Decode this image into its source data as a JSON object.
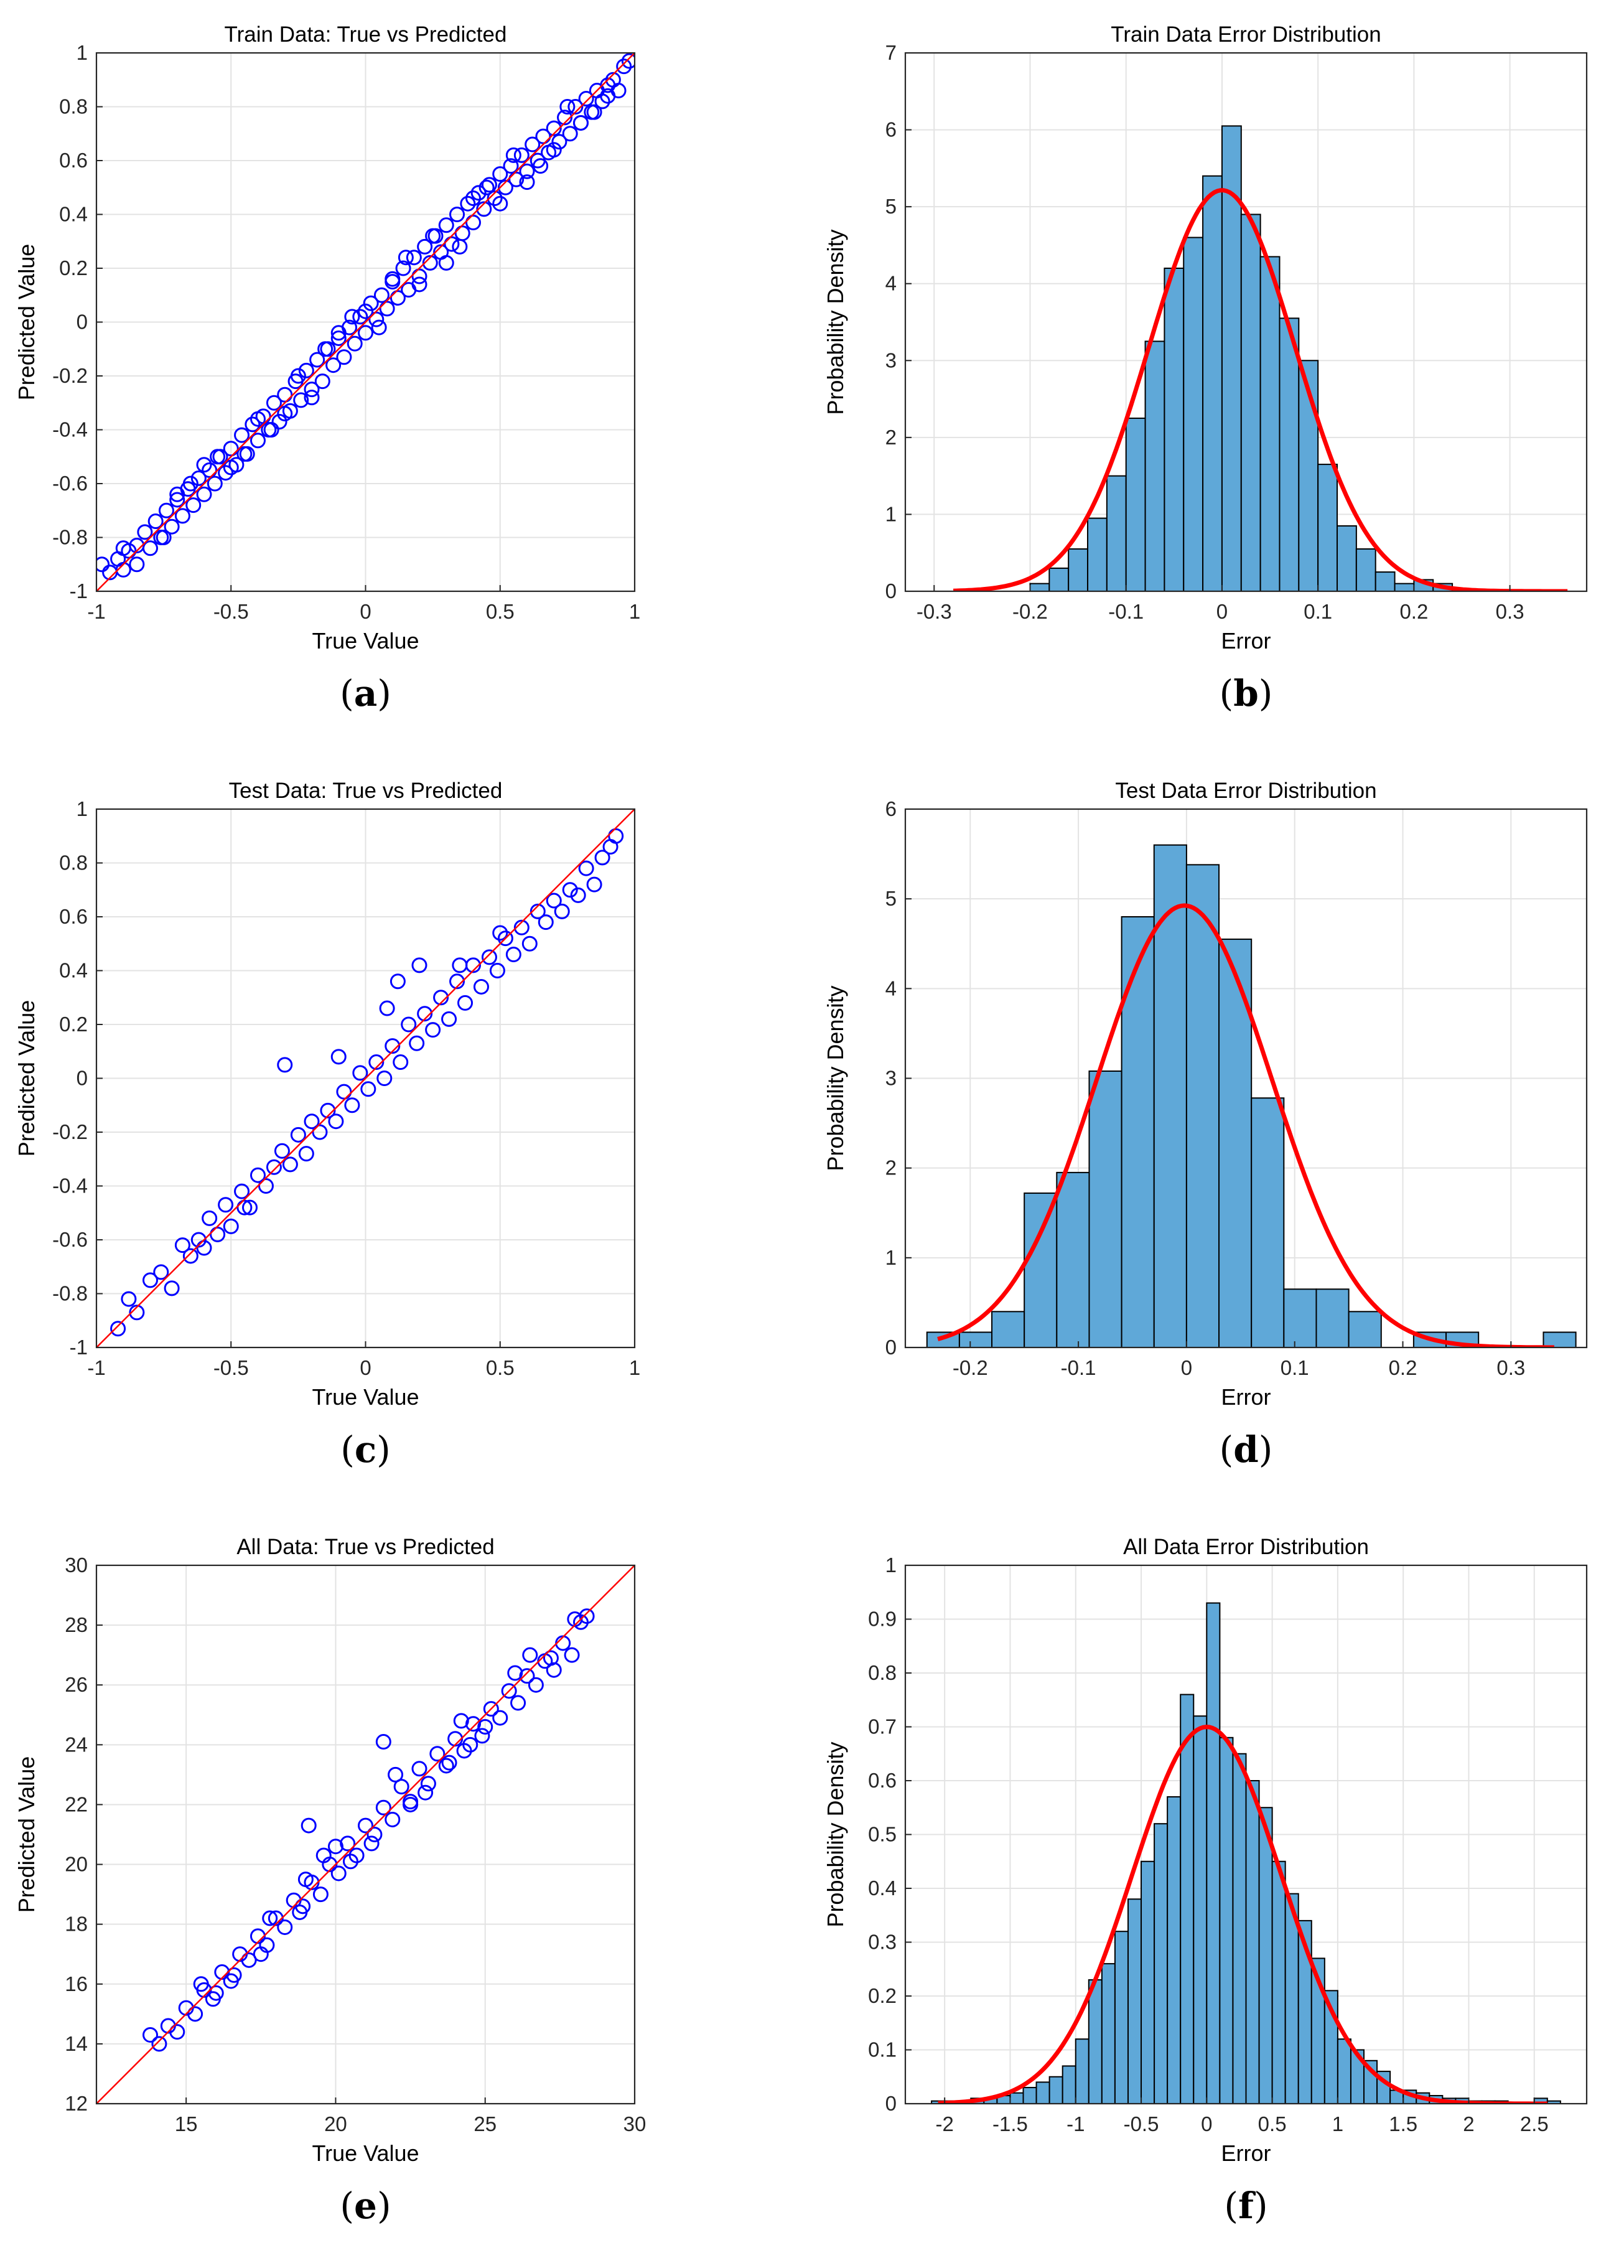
{
  "colors": {
    "scatter_marker": "#0000ff",
    "fit_line": "#ff0000",
    "hist_fill": "#5fa8d8",
    "hist_edge": "#000000",
    "grid": "#e3e3e3"
  },
  "chart_data": [
    {
      "id": "a",
      "caption": "a",
      "type": "scatter",
      "title": "Train Data: True vs Predicted",
      "xlabel": "True Value",
      "ylabel": "Predicted Value",
      "xlim": [
        -1,
        1
      ],
      "ylim": [
        -1,
        1
      ],
      "xticks": [
        -1,
        -0.5,
        0,
        0.5,
        1
      ],
      "xtick_labels": [
        "-1",
        "-0.5",
        "0",
        "0.5",
        "1"
      ],
      "yticks": [
        -1,
        -0.8,
        -0.6,
        -0.4,
        -0.2,
        0,
        0.2,
        0.4,
        0.6,
        0.8,
        1
      ],
      "ytick_labels": [
        "-1",
        "-0.8",
        "-0.6",
        "-0.4",
        "-0.2",
        "0",
        "0.2",
        "0.4",
        "0.6",
        "0.8",
        "1"
      ],
      "grid": true,
      "marker": "open-circle",
      "reference_line": "y = x",
      "series": [
        {
          "x": [
            -0.98,
            -0.95,
            -0.92,
            -0.9,
            -0.88,
            -0.85,
            -0.82,
            -0.8,
            -0.78,
            -0.76,
            -0.74,
            -0.72,
            -0.7,
            -0.68,
            -0.66,
            -0.64,
            -0.62,
            -0.6,
            -0.58,
            -0.56,
            -0.54,
            -0.52,
            -0.5,
            -0.48,
            -0.46,
            -0.44,
            -0.42,
            -0.4,
            -0.38,
            -0.36,
            -0.34,
            -0.32,
            -0.3,
            -0.28,
            -0.26,
            -0.24,
            -0.22,
            -0.2,
            -0.18,
            -0.16,
            -0.14,
            -0.12,
            -0.1,
            -0.08,
            -0.06,
            -0.04,
            -0.02,
            0,
            0.02,
            0.04,
            0.06,
            0.08,
            0.1,
            0.12,
            0.14,
            0.16,
            0.18,
            0.2,
            0.22,
            0.24,
            0.26,
            0.28,
            0.3,
            0.32,
            0.34,
            0.36,
            0.38,
            0.4,
            0.42,
            0.44,
            0.46,
            0.48,
            0.5,
            0.52,
            0.54,
            0.56,
            0.58,
            0.6,
            0.62,
            0.64,
            0.66,
            0.68,
            0.7,
            0.72,
            0.74,
            0.76,
            0.78,
            0.8,
            0.82,
            0.84,
            0.86,
            0.88,
            0.9,
            0.92,
            0.94,
            0.96,
            0.98,
            -0.9,
            -0.75,
            -0.6,
            -0.45,
            -0.3,
            -0.15,
            0,
            0.15,
            0.3,
            0.45,
            0.6,
            0.75,
            0.9,
            -0.85,
            -0.55,
            -0.35,
            -0.25,
            -0.05,
            0.05,
            0.25,
            0.35,
            0.55,
            0.65,
            0.85,
            -0.65,
            -0.4,
            -0.2,
            0.1,
            0.4,
            0.7,
            -0.7,
            -0.5,
            -0.1,
            0.2,
            0.5,
            0.8
          ],
          "y": [
            -0.9,
            -0.93,
            -0.88,
            -0.92,
            -0.85,
            -0.83,
            -0.78,
            -0.84,
            -0.74,
            -0.8,
            -0.7,
            -0.76,
            -0.66,
            -0.72,
            -0.62,
            -0.68,
            -0.58,
            -0.64,
            -0.55,
            -0.6,
            -0.5,
            -0.56,
            -0.47,
            -0.53,
            -0.42,
            -0.49,
            -0.38,
            -0.44,
            -0.35,
            -0.4,
            -0.3,
            -0.37,
            -0.27,
            -0.33,
            -0.22,
            -0.29,
            -0.18,
            -0.25,
            -0.14,
            -0.22,
            -0.1,
            -0.16,
            -0.06,
            -0.13,
            -0.02,
            -0.08,
            0.02,
            -0.04,
            0.07,
            0.01,
            0.1,
            0.05,
            0.15,
            0.09,
            0.2,
            0.12,
            0.24,
            0.17,
            0.28,
            0.22,
            0.32,
            0.26,
            0.36,
            0.29,
            0.4,
            0.33,
            0.44,
            0.37,
            0.48,
            0.42,
            0.51,
            0.46,
            0.55,
            0.5,
            0.58,
            0.53,
            0.62,
            0.56,
            0.66,
            0.6,
            0.69,
            0.63,
            0.72,
            0.67,
            0.76,
            0.7,
            0.8,
            0.74,
            0.83,
            0.78,
            0.86,
            0.82,
            0.88,
            0.9,
            0.86,
            0.95,
            0.97,
            -0.84,
            -0.8,
            -0.53,
            -0.49,
            -0.34,
            -0.1,
            0.04,
            0.24,
            0.22,
            0.5,
            0.52,
            0.8,
            0.84,
            -0.9,
            -0.5,
            -0.4,
            -0.2,
            0.02,
            -0.02,
            0.32,
            0.28,
            0.62,
            0.58,
            0.78,
            -0.6,
            -0.36,
            -0.28,
            0.16,
            0.46,
            0.64,
            -0.64,
            -0.54,
            -0.04,
            0.14,
            0.44,
            0.74
          ]
        }
      ]
    },
    {
      "id": "b",
      "caption": "b",
      "type": "bar",
      "title": "Train Data Error Distribution",
      "xlabel": "Error",
      "ylabel": "Probability Density",
      "xlim": [
        -0.33,
        0.38
      ],
      "ylim": [
        0,
        7
      ],
      "xticks": [
        -0.3,
        -0.2,
        -0.1,
        0,
        0.1,
        0.2,
        0.3
      ],
      "xtick_labels": [
        "-0.3",
        "-0.2",
        "-0.1",
        "0",
        "0.1",
        "0.2",
        "0.3"
      ],
      "yticks": [
        0,
        1,
        2,
        3,
        4,
        5,
        6,
        7
      ],
      "ytick_labels": [
        "0",
        "1",
        "2",
        "3",
        "4",
        "5",
        "6",
        "7"
      ],
      "grid": true,
      "bin_edges": [
        -0.2,
        -0.18,
        -0.16,
        -0.14,
        -0.12,
        -0.1,
        -0.08,
        -0.06,
        -0.04,
        -0.02,
        0,
        0.02,
        0.04,
        0.06,
        0.08,
        0.1,
        0.12,
        0.14,
        0.16,
        0.18,
        0.2,
        0.22,
        0.24
      ],
      "values": [
        0.1,
        0.3,
        0.55,
        0.95,
        1.5,
        2.25,
        3.25,
        4.2,
        4.6,
        5.4,
        6.05,
        4.9,
        4.35,
        3.55,
        3.0,
        1.65,
        0.85,
        0.55,
        0.25,
        0.1,
        0.15,
        0.1
      ],
      "curve": {
        "type": "normal-pdf",
        "mean": 0.0,
        "std": 0.0765,
        "x_range": [
          -0.28,
          0.36
        ]
      }
    },
    {
      "id": "c",
      "caption": "c",
      "type": "scatter",
      "title": "Test Data: True vs Predicted",
      "xlabel": "True Value",
      "ylabel": "Predicted Value",
      "xlim": [
        -1,
        1
      ],
      "ylim": [
        -1,
        1
      ],
      "xticks": [
        -1,
        -0.5,
        0,
        0.5,
        1
      ],
      "xtick_labels": [
        "-1",
        "-0.5",
        "0",
        "0.5",
        "1"
      ],
      "yticks": [
        -1,
        -0.8,
        -0.6,
        -0.4,
        -0.2,
        0,
        0.2,
        0.4,
        0.6,
        0.8,
        1
      ],
      "ytick_labels": [
        "-1",
        "-0.8",
        "-0.6",
        "-0.4",
        "-0.2",
        "0",
        "0.2",
        "0.4",
        "0.6",
        "0.8",
        "1"
      ],
      "grid": true,
      "marker": "open-circle",
      "reference_line": "y = x",
      "series": [
        {
          "x": [
            -0.92,
            -0.88,
            -0.85,
            -0.8,
            -0.76,
            -0.72,
            -0.68,
            -0.65,
            -0.62,
            -0.58,
            -0.55,
            -0.52,
            -0.5,
            -0.46,
            -0.43,
            -0.4,
            -0.37,
            -0.34,
            -0.31,
            -0.28,
            -0.25,
            -0.22,
            -0.2,
            -0.17,
            -0.14,
            -0.11,
            -0.08,
            -0.05,
            -0.02,
            0.01,
            0.04,
            0.07,
            0.1,
            0.13,
            0.16,
            0.19,
            0.22,
            0.25,
            0.28,
            0.31,
            0.34,
            0.37,
            0.4,
            0.43,
            0.46,
            0.49,
            0.52,
            0.55,
            0.58,
            0.61,
            0.64,
            0.67,
            0.7,
            0.73,
            0.76,
            0.79,
            0.82,
            0.85,
            0.88,
            0.91,
            0.93,
            -0.3,
            -0.1,
            0.08,
            0.35,
            -0.45,
            0.2,
            0.5,
            -0.6,
            0.12
          ],
          "y": [
            -0.93,
            -0.82,
            -0.87,
            -0.75,
            -0.72,
            -0.78,
            -0.62,
            -0.66,
            -0.6,
            -0.52,
            -0.58,
            -0.47,
            -0.55,
            -0.42,
            -0.48,
            -0.36,
            -0.4,
            -0.33,
            -0.27,
            -0.32,
            -0.21,
            -0.28,
            -0.16,
            -0.2,
            -0.12,
            -0.16,
            -0.05,
            -0.1,
            0.02,
            -0.04,
            0.06,
            0.0,
            0.12,
            0.06,
            0.2,
            0.13,
            0.24,
            0.18,
            0.3,
            0.22,
            0.36,
            0.28,
            0.42,
            0.34,
            0.45,
            0.4,
            0.52,
            0.46,
            0.56,
            0.5,
            0.62,
            0.58,
            0.66,
            0.62,
            0.7,
            0.68,
            0.78,
            0.72,
            0.82,
            0.86,
            0.9,
            0.05,
            0.08,
            0.26,
            0.42,
            -0.48,
            0.42,
            0.54,
            -0.63,
            0.36
          ]
        }
      ]
    },
    {
      "id": "d",
      "caption": "d",
      "type": "bar",
      "title": "Test Data Error Distribution",
      "xlabel": "Error",
      "ylabel": "Probability Density",
      "xlim": [
        -0.26,
        0.37
      ],
      "ylim": [
        0,
        6
      ],
      "xticks": [
        -0.2,
        -0.1,
        0,
        0.1,
        0.2,
        0.3
      ],
      "xtick_labels": [
        "-0.2",
        "-0.1",
        "0",
        "0.1",
        "0.2",
        "0.3"
      ],
      "yticks": [
        0,
        1,
        2,
        3,
        4,
        5,
        6
      ],
      "ytick_labels": [
        "0",
        "1",
        "2",
        "3",
        "4",
        "5",
        "6"
      ],
      "grid": true,
      "bin_edges": [
        -0.24,
        -0.21,
        -0.18,
        -0.15,
        -0.12,
        -0.09,
        -0.06,
        -0.03,
        0,
        0.03,
        0.06,
        0.09,
        0.12,
        0.15,
        0.18,
        0.21,
        0.24,
        0.27,
        0.3,
        0.33,
        0.36
      ],
      "values": [
        0.17,
        0.17,
        0.4,
        1.72,
        1.95,
        3.08,
        4.8,
        5.6,
        5.38,
        4.55,
        2.78,
        0.65,
        0.65,
        0.4,
        0.0,
        0.17,
        0.17,
        0.0,
        0.0,
        0.17
      ],
      "curve": {
        "type": "normal-pdf",
        "mean": -0.002,
        "std": 0.081,
        "x_range": [
          -0.23,
          0.34
        ]
      }
    },
    {
      "id": "e",
      "caption": "e",
      "type": "scatter",
      "title": "All Data: True vs Predicted",
      "xlabel": "True Value",
      "ylabel": "Predicted Value",
      "xlim": [
        12,
        30
      ],
      "ylim": [
        12,
        30
      ],
      "xticks": [
        15,
        20,
        25,
        30
      ],
      "xtick_labels": [
        "15",
        "20",
        "25",
        "30"
      ],
      "yticks": [
        12,
        14,
        16,
        18,
        20,
        22,
        24,
        26,
        28,
        30
      ],
      "ytick_labels": [
        "12",
        "14",
        "16",
        "18",
        "20",
        "22",
        "24",
        "26",
        "28",
        "30"
      ],
      "grid": true,
      "marker": "open-circle",
      "reference_line": "y = x",
      "series": [
        {
          "x": [
            13.8,
            14.1,
            14.4,
            14.7,
            15.0,
            15.3,
            15.6,
            15.9,
            16.2,
            16.5,
            16.8,
            17.1,
            17.4,
            17.7,
            18.0,
            18.3,
            18.6,
            18.9,
            19.2,
            19.5,
            19.8,
            20.1,
            20.4,
            20.7,
            21.0,
            21.3,
            21.6,
            21.9,
            22.2,
            22.5,
            22.8,
            23.1,
            23.4,
            23.7,
            24.0,
            24.3,
            24.6,
            24.9,
            25.2,
            25.5,
            25.8,
            26.1,
            26.4,
            26.7,
            27.0,
            27.3,
            27.6,
            27.9,
            28.2,
            28.4,
            15.5,
            16.6,
            17.8,
            18.8,
            19.1,
            20.0,
            21.2,
            22.0,
            23.0,
            24.2,
            25.0,
            26.0,
            27.2,
            28.0,
            16.0,
            17.5,
            19.0,
            20.5,
            22.5,
            24.5,
            26.5,
            21.6,
            19.6,
            23.8
          ],
          "y": [
            14.3,
            14.0,
            14.6,
            14.4,
            15.2,
            15.0,
            15.8,
            15.5,
            16.4,
            16.1,
            17.0,
            16.8,
            17.6,
            17.3,
            18.2,
            17.9,
            18.8,
            18.6,
            19.4,
            19.0,
            20.0,
            19.7,
            20.7,
            20.3,
            21.3,
            21.0,
            21.9,
            21.5,
            22.6,
            22.1,
            23.2,
            22.7,
            23.7,
            23.3,
            24.2,
            23.8,
            24.7,
            24.3,
            25.2,
            24.9,
            25.8,
            25.4,
            26.3,
            26.0,
            26.8,
            26.5,
            27.4,
            27.0,
            28.1,
            28.3,
            16.0,
            16.3,
            18.2,
            18.4,
            21.3,
            20.6,
            20.7,
            23.0,
            22.4,
            24.8,
            24.6,
            26.4,
            26.9,
            28.2,
            15.7,
            17.0,
            19.5,
            20.1,
            22.0,
            24.0,
            27.0,
            24.1,
            20.3,
            23.4
          ]
        }
      ]
    },
    {
      "id": "f",
      "caption": "f",
      "type": "bar",
      "title": "All Data Error Distribution",
      "xlabel": "Error",
      "ylabel": "Probability Density",
      "xlim": [
        -2.3,
        2.9
      ],
      "ylim": [
        0,
        1
      ],
      "xticks": [
        -2,
        -1.5,
        -1,
        -0.5,
        0,
        0.5,
        1,
        1.5,
        2,
        2.5
      ],
      "xtick_labels": [
        "-2",
        "-1.5",
        "-1",
        "-0.5",
        "0",
        "0.5",
        "1",
        "1.5",
        "2",
        "2.5"
      ],
      "yticks": [
        0,
        0.1,
        0.2,
        0.3,
        0.4,
        0.5,
        0.6,
        0.7,
        0.8,
        0.9,
        1
      ],
      "ytick_labels": [
        "0",
        "0.1",
        "0.2",
        "0.3",
        "0.4",
        "0.5",
        "0.6",
        "0.7",
        "0.8",
        "0.9",
        "1"
      ],
      "grid": true,
      "bin_edges": [
        -2.1,
        -2.0,
        -1.9,
        -1.8,
        -1.7,
        -1.6,
        -1.5,
        -1.4,
        -1.3,
        -1.2,
        -1.1,
        -1.0,
        -0.9,
        -0.8,
        -0.7,
        -0.6,
        -0.5,
        -0.4,
        -0.3,
        -0.2,
        -0.1,
        0,
        0.1,
        0.2,
        0.3,
        0.4,
        0.5,
        0.6,
        0.7,
        0.8,
        0.9,
        1.0,
        1.1,
        1.2,
        1.3,
        1.4,
        1.5,
        1.6,
        1.7,
        1.8,
        1.9,
        2.0,
        2.1,
        2.2,
        2.3,
        2.4,
        2.5,
        2.6,
        2.7
      ],
      "values": [
        0.005,
        0.005,
        0.005,
        0.01,
        0.01,
        0.015,
        0.02,
        0.03,
        0.04,
        0.05,
        0.07,
        0.12,
        0.23,
        0.26,
        0.32,
        0.38,
        0.45,
        0.52,
        0.57,
        0.76,
        0.72,
        0.93,
        0.68,
        0.65,
        0.6,
        0.55,
        0.45,
        0.39,
        0.34,
        0.27,
        0.21,
        0.12,
        0.1,
        0.08,
        0.06,
        0.025,
        0.025,
        0.02,
        0.015,
        0.01,
        0.01,
        0.005,
        0.005,
        0.005,
        0.0,
        0.0,
        0.01,
        0.005
      ],
      "curve": {
        "type": "normal-pdf",
        "mean": 0.0,
        "std": 0.57,
        "x_range": [
          -2.05,
          2.6
        ]
      }
    }
  ]
}
